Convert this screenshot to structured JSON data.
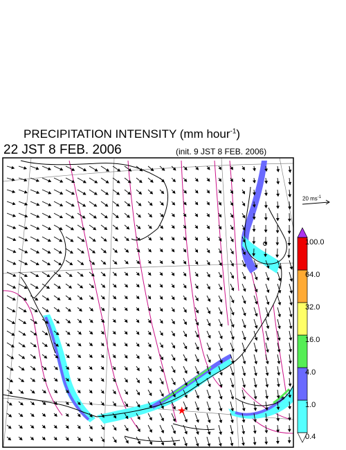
{
  "header": {
    "title": "PRECIPITATION INTENSITY (mm hour",
    "title_exp": "-1",
    "title_close": ")",
    "valid_time": "22 JST 8 FEB. 2006",
    "init_time": "(init. 9 JST 8 FEB. 2006)"
  },
  "reference_vector": {
    "label": "20 ms",
    "label_exp": "-1"
  },
  "colorbar": {
    "levels": [
      "0.4",
      "1.0",
      "4.0",
      "16.0",
      "32.0",
      "64.0",
      "100.0"
    ],
    "colors": [
      "#55ffff",
      "#6a6aff",
      "#55ee55",
      "#ffff66",
      "#ffaa33",
      "#ee0000",
      "#aa33ee"
    ]
  },
  "map": {
    "land_color": "#ffffff",
    "coast_color": "#000000",
    "grid_color": "#888888",
    "isobar_color": "#cc1188",
    "wind_color": "#000000",
    "marker_color": "#ff0000"
  }
}
